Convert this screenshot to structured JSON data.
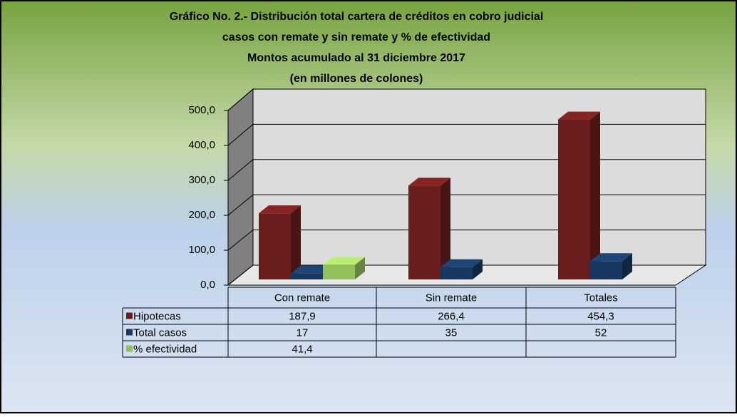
{
  "chart_data": {
    "type": "bar3d",
    "title": [
      "Gráfico No. 2.- Distribución total cartera de créditos en cobro judicial",
      "casos con remate  y sin remate y % de efectividad",
      "Montos acumulado  al 31 diciembre   2017",
      "(en millones de colones)"
    ],
    "categories": [
      "Con remate",
      "Sin remate",
      "Totales"
    ],
    "series": [
      {
        "name": "Hipotecas",
        "color": "#6b1d1d",
        "values": [
          187.9,
          266.4,
          454.3
        ],
        "value_labels": [
          "187,9",
          "266,4",
          "454,3"
        ]
      },
      {
        "name": "Total casos",
        "color": "#17375e",
        "values": [
          17,
          35,
          52
        ]
      },
      {
        "name": "% efectividad",
        "color": "#92c05a",
        "values": [
          41.4,
          null,
          null
        ],
        "value_labels": [
          "41,4",
          null,
          null
        ]
      }
    ],
    "ylim": [
      0,
      500
    ],
    "yticks": [
      {
        "value": 0,
        "label": "0,0"
      },
      {
        "value": 100,
        "label": "100,0"
      },
      {
        "value": 200,
        "label": "200,0"
      },
      {
        "value": 300,
        "label": "300,0"
      },
      {
        "value": 400,
        "label": "400,0"
      },
      {
        "value": 500,
        "label": "500,0"
      }
    ],
    "grid": true
  }
}
